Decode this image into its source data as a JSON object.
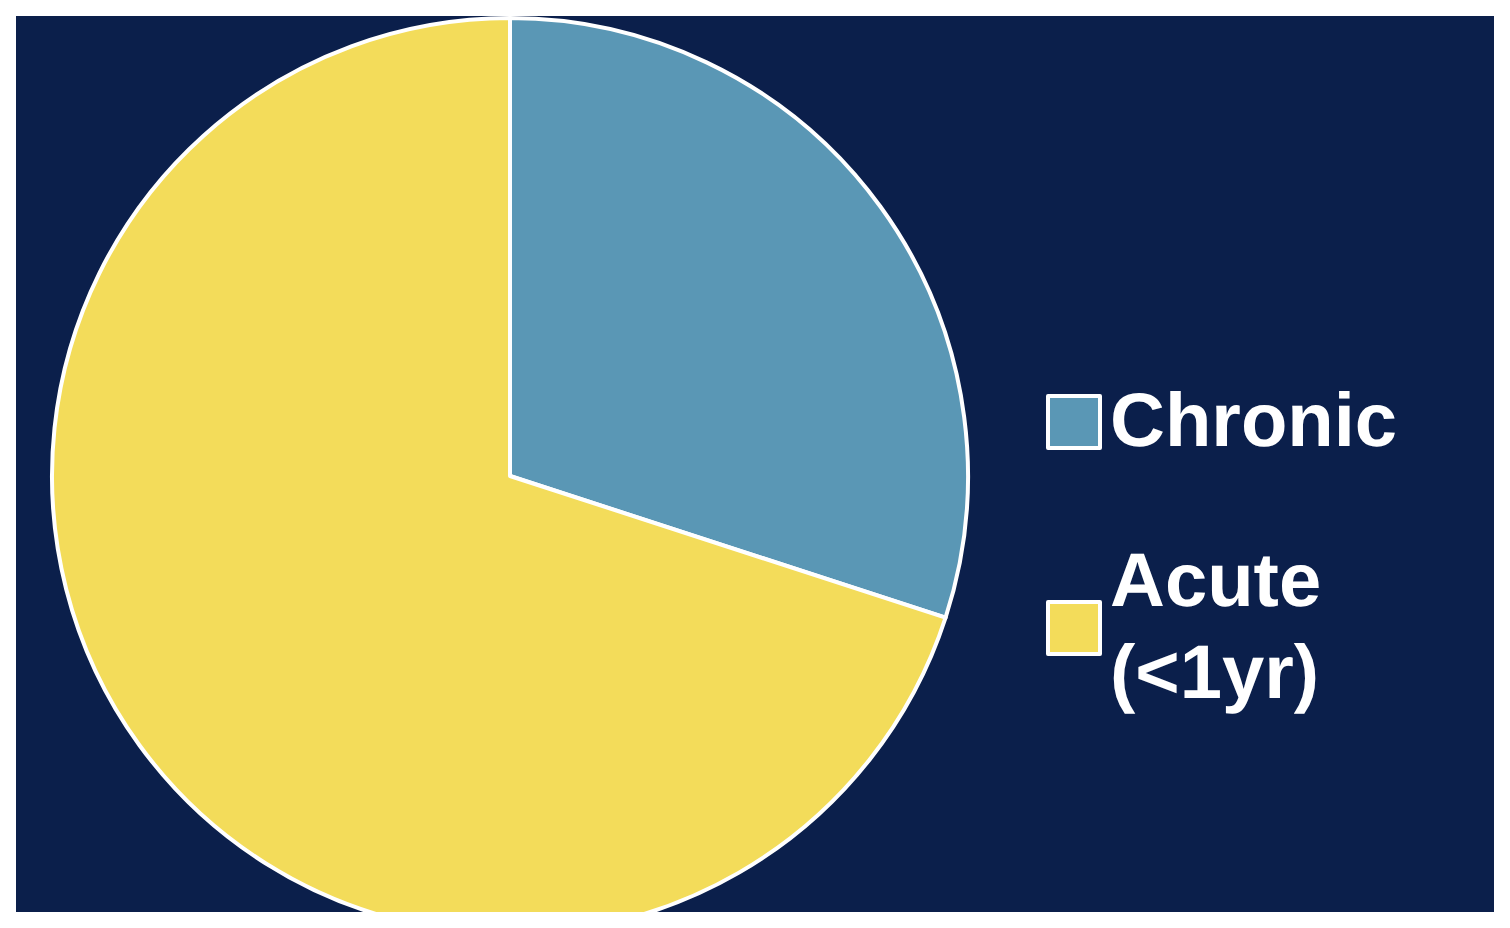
{
  "chart_data": {
    "type": "pie",
    "categories": [
      "Chronic",
      "Acute (<1yr)"
    ],
    "values": [
      30,
      70
    ],
    "colors": [
      "#5a97b5",
      "#f3dc5a"
    ],
    "legend": "right"
  }
}
